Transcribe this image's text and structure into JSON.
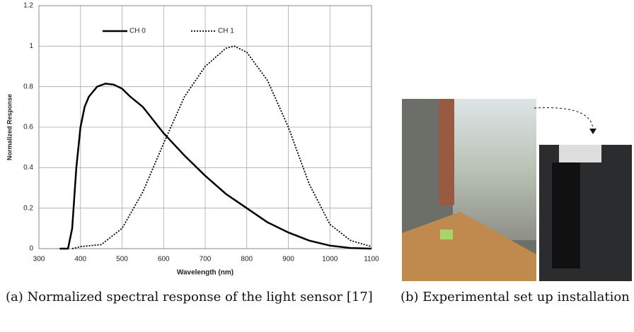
{
  "chart_data": {
    "type": "line",
    "xlabel": "Wavelength (nm)",
    "ylabel": "Normalized Response",
    "xlim": [
      300,
      1100
    ],
    "xticks": [
      300,
      400,
      500,
      600,
      700,
      800,
      900,
      1000,
      1100
    ],
    "ylim": [
      0,
      1.2
    ],
    "yticks": [
      0,
      0.2,
      0.4,
      0.6,
      0.8,
      1,
      1.2
    ],
    "grid": true,
    "series": [
      {
        "name": "CH 0",
        "color": "#000000",
        "dash": "solid",
        "x": [
          350,
          370,
          380,
          390,
          400,
          410,
          420,
          440,
          460,
          480,
          500,
          520,
          550,
          600,
          650,
          700,
          750,
          800,
          850,
          900,
          950,
          1000,
          1050,
          1100
        ],
        "values": [
          0,
          0,
          0.1,
          0.4,
          0.6,
          0.7,
          0.75,
          0.8,
          0.815,
          0.81,
          0.79,
          0.75,
          0.7,
          0.57,
          0.46,
          0.36,
          0.27,
          0.2,
          0.13,
          0.08,
          0.04,
          0.015,
          0.003,
          0
        ]
      },
      {
        "name": "CH 1",
        "color": "#000000",
        "dash": "dotted",
        "x": [
          380,
          400,
          450,
          500,
          550,
          600,
          650,
          700,
          750,
          770,
          800,
          850,
          900,
          950,
          1000,
          1050,
          1100
        ],
        "values": [
          0,
          0.01,
          0.02,
          0.1,
          0.28,
          0.52,
          0.75,
          0.9,
          0.99,
          1,
          0.97,
          0.83,
          0.6,
          0.32,
          0.12,
          0.04,
          0.01
        ]
      }
    ]
  },
  "captions": {
    "a": "(a) Normalized spectral response of the light sensor [17]",
    "b": "(b) Experimental set up installation"
  }
}
